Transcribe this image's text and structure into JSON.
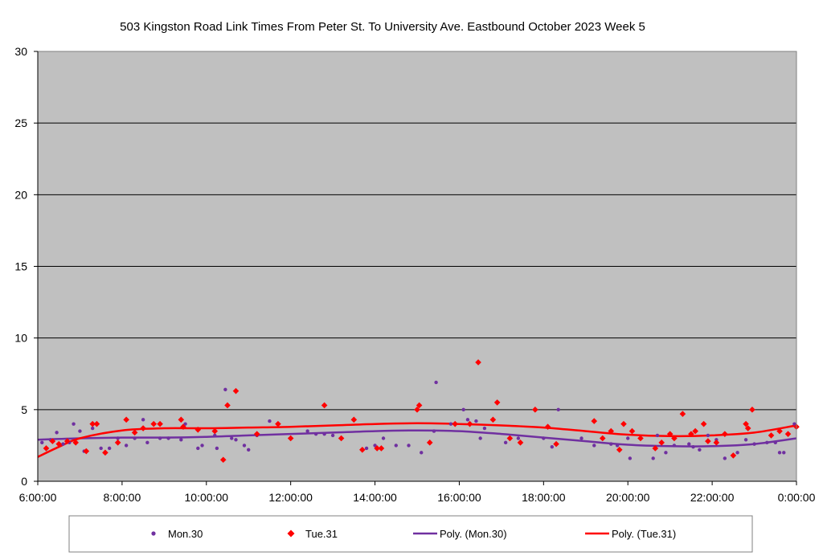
{
  "chart_data": {
    "type": "scatter",
    "title": "503 Kingston Road Link Times From Peter St. To University Ave. Eastbound October 2023  Week 5",
    "xlabel": "",
    "ylabel": "",
    "x_unit": "hours",
    "xlim": [
      6,
      24
    ],
    "ylim": [
      0,
      30
    ],
    "y_ticks": [
      0,
      5,
      10,
      15,
      20,
      25,
      30
    ],
    "x_ticks": [
      {
        "value": 6,
        "label": "6:00:00"
      },
      {
        "value": 8,
        "label": "8:00:00"
      },
      {
        "value": 10,
        "label": "10:00:00"
      },
      {
        "value": 12,
        "label": "12:00:00"
      },
      {
        "value": 14,
        "label": "14:00:00"
      },
      {
        "value": 16,
        "label": "16:00:00"
      },
      {
        "value": 18,
        "label": "18:00:00"
      },
      {
        "value": 20,
        "label": "20:00:00"
      },
      {
        "value": 22,
        "label": "22:00:00"
      },
      {
        "value": 24,
        "label": "0:00:00"
      }
    ],
    "grid": true,
    "plot_background": "#c0c0c0",
    "legend_position": "bottom",
    "series": [
      {
        "name": "Mon.30",
        "marker": "circle",
        "color": "#7030a0",
        "points": [
          [
            6.1,
            2.7
          ],
          [
            6.3,
            2.9
          ],
          [
            6.45,
            3.4
          ],
          [
            6.6,
            2.6
          ],
          [
            6.75,
            2.7
          ],
          [
            6.85,
            4.0
          ],
          [
            7.0,
            3.5
          ],
          [
            7.1,
            2.1
          ],
          [
            7.3,
            3.7
          ],
          [
            7.5,
            2.3
          ],
          [
            7.7,
            2.3
          ],
          [
            7.9,
            3.0
          ],
          [
            8.1,
            2.5
          ],
          [
            8.3,
            3.0
          ],
          [
            8.5,
            4.3
          ],
          [
            8.6,
            2.7
          ],
          [
            8.9,
            3.0
          ],
          [
            9.1,
            3.0
          ],
          [
            9.4,
            2.9
          ],
          [
            9.5,
            4.0
          ],
          [
            9.8,
            2.3
          ],
          [
            9.9,
            2.5
          ],
          [
            10.2,
            3.2
          ],
          [
            10.25,
            2.3
          ],
          [
            10.45,
            6.4
          ],
          [
            10.6,
            3.0
          ],
          [
            10.7,
            2.9
          ],
          [
            10.9,
            2.5
          ],
          [
            11.0,
            2.2
          ],
          [
            11.2,
            3.2
          ],
          [
            11.5,
            4.2
          ],
          [
            12.4,
            3.5
          ],
          [
            12.6,
            3.3
          ],
          [
            12.8,
            3.3
          ],
          [
            13.0,
            3.2
          ],
          [
            13.8,
            2.3
          ],
          [
            14.0,
            2.5
          ],
          [
            14.2,
            3.0
          ],
          [
            14.5,
            2.5
          ],
          [
            14.8,
            2.5
          ],
          [
            15.1,
            2.0
          ],
          [
            15.4,
            3.5
          ],
          [
            15.45,
            6.9
          ],
          [
            15.8,
            4.0
          ],
          [
            16.1,
            5.0
          ],
          [
            16.2,
            4.3
          ],
          [
            16.4,
            4.2
          ],
          [
            16.5,
            3.0
          ],
          [
            16.6,
            3.7
          ],
          [
            16.8,
            4.3
          ],
          [
            17.1,
            2.7
          ],
          [
            17.4,
            3.0
          ],
          [
            18.0,
            3.0
          ],
          [
            18.2,
            2.4
          ],
          [
            18.35,
            5.0
          ],
          [
            18.9,
            3.0
          ],
          [
            19.2,
            2.5
          ],
          [
            19.6,
            2.6
          ],
          [
            19.75,
            2.5
          ],
          [
            20.0,
            3.0
          ],
          [
            20.05,
            1.6
          ],
          [
            20.3,
            3.0
          ],
          [
            20.6,
            1.6
          ],
          [
            20.7,
            3.2
          ],
          [
            20.9,
            2.0
          ],
          [
            21.1,
            2.5
          ],
          [
            21.45,
            2.6
          ],
          [
            21.55,
            2.4
          ],
          [
            21.7,
            2.2
          ],
          [
            21.9,
            3.2
          ],
          [
            22.1,
            2.9
          ],
          [
            22.3,
            1.6
          ],
          [
            22.6,
            2.0
          ],
          [
            22.8,
            2.9
          ],
          [
            23.0,
            2.6
          ],
          [
            23.3,
            2.7
          ],
          [
            23.5,
            2.7
          ],
          [
            23.6,
            2.0
          ],
          [
            23.7,
            2.0
          ],
          [
            23.95,
            4.0
          ]
        ]
      },
      {
        "name": "Tue.31",
        "marker": "diamond",
        "color": "#ff0000",
        "points": [
          [
            6.2,
            2.3
          ],
          [
            6.35,
            2.8
          ],
          [
            6.5,
            2.6
          ],
          [
            6.7,
            2.8
          ],
          [
            6.9,
            2.7
          ],
          [
            7.15,
            2.1
          ],
          [
            7.3,
            4.0
          ],
          [
            7.4,
            4.0
          ],
          [
            7.6,
            2.0
          ],
          [
            7.9,
            2.7
          ],
          [
            8.1,
            4.3
          ],
          [
            8.3,
            3.4
          ],
          [
            8.5,
            3.7
          ],
          [
            8.75,
            4.0
          ],
          [
            8.9,
            4.0
          ],
          [
            9.4,
            4.3
          ],
          [
            9.45,
            3.8
          ],
          [
            9.8,
            3.6
          ],
          [
            10.2,
            3.5
          ],
          [
            10.4,
            1.5
          ],
          [
            10.5,
            5.3
          ],
          [
            10.7,
            6.3
          ],
          [
            11.2,
            3.3
          ],
          [
            11.7,
            4.0
          ],
          [
            12.0,
            3.0
          ],
          [
            12.8,
            5.3
          ],
          [
            13.2,
            3.0
          ],
          [
            13.5,
            4.3
          ],
          [
            13.7,
            2.2
          ],
          [
            14.05,
            2.3
          ],
          [
            14.15,
            2.3
          ],
          [
            15.0,
            5.0
          ],
          [
            15.05,
            5.3
          ],
          [
            15.3,
            2.7
          ],
          [
            15.9,
            4.0
          ],
          [
            16.25,
            4.0
          ],
          [
            16.45,
            8.3
          ],
          [
            16.8,
            4.3
          ],
          [
            16.9,
            5.5
          ],
          [
            17.2,
            3.0
          ],
          [
            17.45,
            2.7
          ],
          [
            17.8,
            5.0
          ],
          [
            18.1,
            3.8
          ],
          [
            18.3,
            2.6
          ],
          [
            19.2,
            4.2
          ],
          [
            19.4,
            3.0
          ],
          [
            19.6,
            3.5
          ],
          [
            19.8,
            2.2
          ],
          [
            19.9,
            4.0
          ],
          [
            20.1,
            3.5
          ],
          [
            20.3,
            3.0
          ],
          [
            20.65,
            2.3
          ],
          [
            20.8,
            2.7
          ],
          [
            21.0,
            3.3
          ],
          [
            21.1,
            3.0
          ],
          [
            21.3,
            4.7
          ],
          [
            21.5,
            3.3
          ],
          [
            21.6,
            3.5
          ],
          [
            21.8,
            4.0
          ],
          [
            21.9,
            2.8
          ],
          [
            22.1,
            2.7
          ],
          [
            22.3,
            3.3
          ],
          [
            22.5,
            1.8
          ],
          [
            22.8,
            4.0
          ],
          [
            22.85,
            3.7
          ],
          [
            22.95,
            5.0
          ],
          [
            23.4,
            3.2
          ],
          [
            23.6,
            3.5
          ],
          [
            23.8,
            3.3
          ],
          [
            24.0,
            3.8
          ]
        ]
      }
    ],
    "trendlines": [
      {
        "name": "Poly. (Mon.30)",
        "color": "#7030a0",
        "points": [
          [
            6,
            2.9
          ],
          [
            7,
            3.0
          ],
          [
            8,
            3.05
          ],
          [
            9,
            3.05
          ],
          [
            10,
            3.1
          ],
          [
            11,
            3.2
          ],
          [
            12,
            3.3
          ],
          [
            13,
            3.4
          ],
          [
            14,
            3.5
          ],
          [
            15,
            3.55
          ],
          [
            16,
            3.5
          ],
          [
            17,
            3.3
          ],
          [
            18,
            3.05
          ],
          [
            19,
            2.8
          ],
          [
            20,
            2.55
          ],
          [
            21,
            2.45
          ],
          [
            22,
            2.45
          ],
          [
            23,
            2.6
          ],
          [
            24,
            3.0
          ]
        ]
      },
      {
        "name": "Poly. (Tue.31)",
        "color": "#ff0000",
        "points": [
          [
            6,
            1.7
          ],
          [
            6.5,
            2.4
          ],
          [
            7,
            3.0
          ],
          [
            8,
            3.55
          ],
          [
            9,
            3.7
          ],
          [
            10,
            3.7
          ],
          [
            11,
            3.75
          ],
          [
            12,
            3.8
          ],
          [
            13,
            3.9
          ],
          [
            14,
            4.0
          ],
          [
            15,
            4.05
          ],
          [
            16,
            4.0
          ],
          [
            17,
            3.9
          ],
          [
            18,
            3.75
          ],
          [
            19,
            3.5
          ],
          [
            20,
            3.25
          ],
          [
            21,
            3.15
          ],
          [
            22,
            3.2
          ],
          [
            23,
            3.4
          ],
          [
            24,
            3.9
          ]
        ]
      }
    ]
  }
}
